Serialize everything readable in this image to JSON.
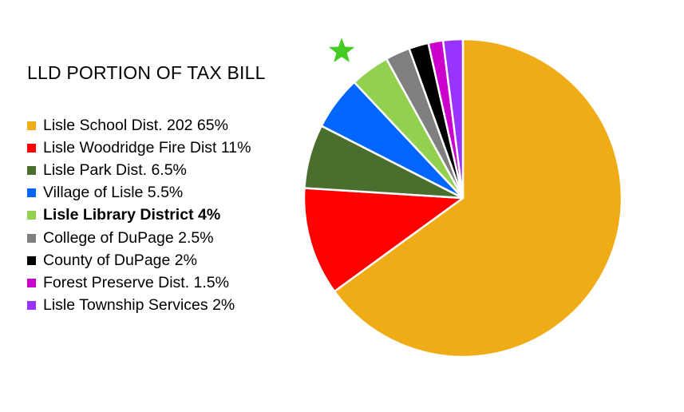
{
  "chart_data": {
    "type": "pie",
    "title": "LLD PORTION OF TAX BILL",
    "slices": [
      {
        "label": "Lisle School Dist. 202 65%",
        "value": 65,
        "color": "#F0AC16",
        "bold": false
      },
      {
        "label": "Lisle Woodridge Fire Dist 11%",
        "value": 11,
        "color": "#FF0000",
        "bold": false
      },
      {
        "label": "Lisle Park Dist. 6.5%",
        "value": 6.5,
        "color": "#4A6E2E",
        "bold": false
      },
      {
        "label": "Village of Lisle 5.5%",
        "value": 5.5,
        "color": "#0066FF",
        "bold": false
      },
      {
        "label": "Lisle Library District 4%",
        "value": 4,
        "color": "#92D050",
        "bold": true
      },
      {
        "label": "College of DuPage 2.5%",
        "value": 2.5,
        "color": "#7F7F7F",
        "bold": false
      },
      {
        "label": "County of DuPage 2%",
        "value": 2,
        "color": "#000000",
        "bold": false
      },
      {
        "label": "Forest Preserve Dist. 1.5%",
        "value": 1.5,
        "color": "#CC00CC",
        "bold": false
      },
      {
        "label": "Lisle Township Services 2%",
        "value": 2,
        "color": "#9933FF",
        "bold": false
      }
    ],
    "legend_position": "left",
    "highlight_marker": {
      "icon": "star-icon",
      "color": "#44CC22",
      "slice": "Lisle Library District 4%"
    }
  }
}
